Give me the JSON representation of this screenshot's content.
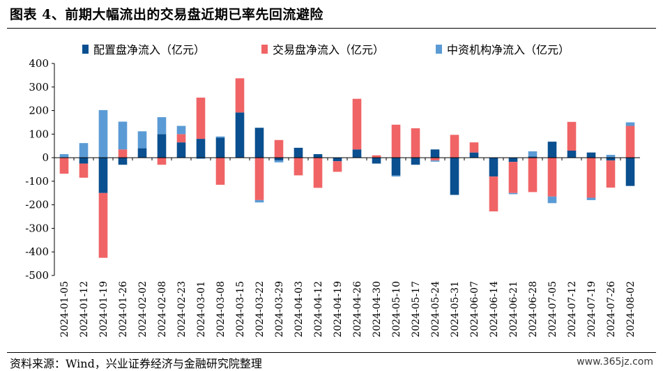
{
  "page": {
    "title": "图表 4、前期大幅流出的交易盘近期已率先回流避险",
    "source": "资料来源：Wind，兴业证券经济与金融研究院整理",
    "watermark": "www.365jz.com"
  },
  "chart_data": {
    "type": "bar",
    "stacked": true,
    "title": "",
    "xlabel": "",
    "ylabel": "",
    "ylim": [
      -500,
      400
    ],
    "yticks": [
      400,
      300,
      200,
      100,
      0,
      -100,
      -200,
      -300,
      -400,
      -500
    ],
    "legend_position": "top",
    "categories": [
      "2024-01-05",
      "2024-01-12",
      "2024-01-19",
      "2024-01-26",
      "2024-02-02",
      "2024-02-08",
      "2024-02-23",
      "2024-03-01",
      "2024-03-08",
      "2024-03-15",
      "2024-03-22",
      "2024-03-29",
      "2024-04-03",
      "2024-04-12",
      "2024-04-19",
      "2024-04-26",
      "2024-04-30",
      "2024-05-10",
      "2024-05-17",
      "2024-05-24",
      "2024-05-31",
      "2024-06-07",
      "2024-06-14",
      "2024-06-21",
      "2024-06-28",
      "2024-07-05",
      "2024-07-12",
      "2024-07-19",
      "2024-07-26",
      "2024-08-02"
    ],
    "series": [
      {
        "name": "配置盘净流入（亿元）",
        "color": "#0a4f8f",
        "values": [
          0,
          -25,
          -150,
          -30,
          40,
          100,
          65,
          80,
          85,
          192,
          127,
          -12,
          42,
          15,
          -15,
          35,
          -25,
          -75,
          -30,
          35,
          -158,
          22,
          -80,
          -18,
          5,
          68,
          30,
          22,
          -12,
          -120
        ]
      },
      {
        "name": "交易盘净流入（亿元）",
        "color": "#f06466",
        "values": [
          -68,
          -60,
          -275,
          35,
          0,
          -30,
          35,
          175,
          -115,
          145,
          -180,
          75,
          -75,
          -128,
          -45,
          215,
          10,
          140,
          125,
          -12,
          97,
          43,
          -148,
          -132,
          -146,
          -165,
          122,
          -170,
          -115,
          135
        ]
      },
      {
        "name": "中资机构净流入（亿元）",
        "color": "#5b9bd5",
        "values": [
          15,
          62,
          202,
          118,
          72,
          72,
          35,
          -5,
          5,
          0,
          -10,
          -8,
          0,
          0,
          0,
          0,
          0,
          -5,
          0,
          -5,
          0,
          0,
          0,
          -5,
          22,
          -28,
          0,
          -10,
          12,
          15
        ]
      }
    ]
  }
}
